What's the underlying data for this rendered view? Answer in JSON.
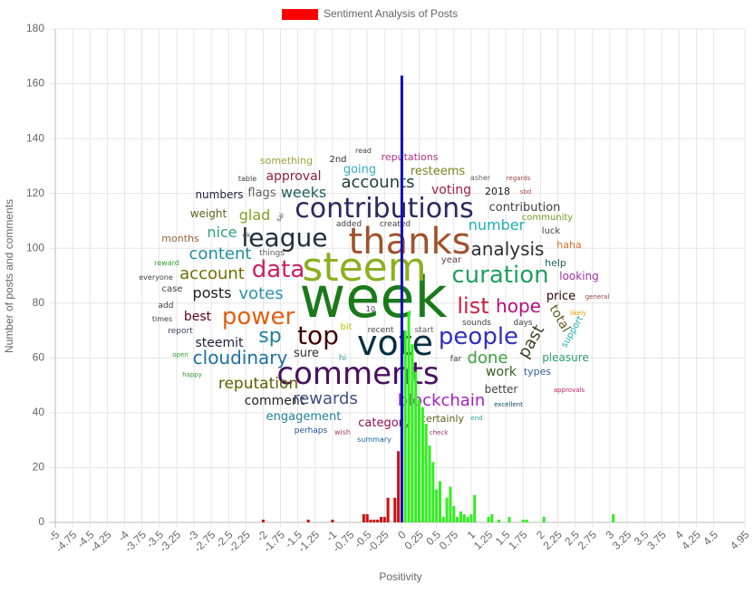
{
  "chart_data": {
    "type": "bar",
    "legend": "Sentiment Analysis of Posts",
    "color": "#ff0000",
    "xlabel": "Positivity",
    "ylabel": "Number of posts and comments",
    "x": [
      -2,
      -1.35,
      -1,
      -0.55,
      -0.5,
      -0.45,
      -0.4,
      -0.35,
      -0.3,
      -0.25,
      -0.2,
      -0.1,
      -0.05,
      0,
      0.05,
      0.1,
      0.15,
      0.2,
      0.25,
      0.3,
      0.35,
      0.4,
      0.45,
      0.5,
      0.55,
      0.6,
      0.65,
      0.7,
      0.75,
      0.8,
      0.85,
      0.9,
      0.95,
      1,
      1.05,
      1.25,
      1.3,
      1.4,
      1.55,
      1.75,
      1.8,
      2.05,
      3.05
    ],
    "values": [
      1,
      1,
      1,
      3,
      3,
      1,
      1,
      1,
      2,
      2,
      9,
      9,
      26,
      163,
      70,
      77,
      65,
      55,
      45,
      42,
      36,
      28,
      22,
      12,
      15,
      2,
      9,
      13,
      6,
      2,
      4,
      3,
      2,
      3,
      10,
      2,
      3,
      1,
      2,
      1,
      1,
      2,
      3
    ],
    "bar_colors": {
      "negative": "#cc1111",
      "zero": "#1111bb",
      "positive": "#33ee22"
    },
    "xlim": [
      -5,
      4.95
    ],
    "xticks": [
      -5,
      -4.75,
      -4.5,
      -4.25,
      -4,
      -3.75,
      -3.5,
      -3.25,
      -3,
      -2.75,
      -2.5,
      -2.25,
      -2,
      -1.75,
      -1.5,
      -1.25,
      -1,
      -0.75,
      -0.5,
      -0.25,
      0,
      0.25,
      0.5,
      0.75,
      1,
      1.25,
      1.5,
      1.75,
      2,
      2.25,
      2.5,
      2.75,
      3,
      3.25,
      3.5,
      3.75,
      4,
      4.25,
      4.5,
      4.95
    ],
    "ylim": [
      0,
      180
    ],
    "yticks": [
      0,
      20,
      40,
      60,
      80,
      100,
      120,
      140,
      160,
      180
    ],
    "grid": true
  },
  "word_cloud": [
    {
      "text": "week",
      "color": "#1a7a1a"
    },
    {
      "text": "steem",
      "color": "#8ab020"
    },
    {
      "text": "thanks",
      "color": "#a0522d"
    },
    {
      "text": "contributions",
      "color": "#2a2a60"
    },
    {
      "text": "league",
      "color": "#203040"
    },
    {
      "text": "vote",
      "color": "#0a3040"
    },
    {
      "text": "comments",
      "color": "#4a1060"
    },
    {
      "text": "top",
      "color": "#400000"
    },
    {
      "text": "power",
      "color": "#e06010"
    },
    {
      "text": "data",
      "color": "#cc2060"
    },
    {
      "text": "curation",
      "color": "#20a060"
    },
    {
      "text": "analysis",
      "color": "#303030"
    },
    {
      "text": "people",
      "color": "#3030c0"
    },
    {
      "text": "list",
      "color": "#d02040"
    },
    {
      "text": "hope",
      "color": "#b01080"
    },
    {
      "text": "sp",
      "color": "#2080a0"
    },
    {
      "text": "cloudinary",
      "color": "#2070a0"
    },
    {
      "text": "votes",
      "color": "#3090b0"
    },
    {
      "text": "posts",
      "color": "#202020"
    },
    {
      "text": "account",
      "color": "#707000"
    },
    {
      "text": "content",
      "color": "#2090a0"
    },
    {
      "text": "nice",
      "color": "#30a080"
    },
    {
      "text": "glad",
      "color": "#80a020"
    },
    {
      "text": "weight",
      "color": "#606020"
    },
    {
      "text": "months",
      "color": "#a06040"
    },
    {
      "text": "numbers",
      "color": "#202040"
    },
    {
      "text": "flags",
      "color": "#606060"
    },
    {
      "text": "weeks",
      "color": "#206060"
    },
    {
      "text": "approval",
      "color": "#902040"
    },
    {
      "text": "something",
      "color": "#a0a040"
    },
    {
      "text": "2nd",
      "color": "#303030"
    },
    {
      "text": "read",
      "color": "#404040"
    },
    {
      "text": "going",
      "color": "#30b0c0"
    },
    {
      "text": "accounts",
      "color": "#204040"
    },
    {
      "text": "reputations",
      "color": "#b03080"
    },
    {
      "text": "resteems",
      "color": "#808020"
    },
    {
      "text": "voting",
      "color": "#a02040"
    },
    {
      "text": "2018",
      "color": "#202020"
    },
    {
      "text": "asher",
      "color": "#606060"
    },
    {
      "text": "regards",
      "color": "#a04040"
    },
    {
      "text": "sbd",
      "color": "#c04040"
    },
    {
      "text": "contribution",
      "color": "#404040"
    },
    {
      "text": "number",
      "color": "#20b0b0"
    },
    {
      "text": "community",
      "color": "#70a020"
    },
    {
      "text": "luck",
      "color": "#404040"
    },
    {
      "text": "haha",
      "color": "#e07030"
    },
    {
      "text": "help",
      "color": "#206060"
    },
    {
      "text": "looking",
      "color": "#a030a0"
    },
    {
      "text": "price",
      "color": "#300000"
    },
    {
      "text": "general",
      "color": "#a04040"
    },
    {
      "text": "likely",
      "color": "#e0a000"
    },
    {
      "text": "total",
      "color": "#606020"
    },
    {
      "text": "support",
      "color": "#20b0b0"
    },
    {
      "text": "past",
      "color": "#404020"
    },
    {
      "text": "pleasure",
      "color": "#30a070"
    },
    {
      "text": "types",
      "color": "#3060a0"
    },
    {
      "text": "approvals",
      "color": "#c02060"
    },
    {
      "text": "days",
      "color": "#404040"
    },
    {
      "text": "sounds",
      "color": "#404040"
    },
    {
      "text": "done",
      "color": "#40a040"
    },
    {
      "text": "work",
      "color": "#306020"
    },
    {
      "text": "better",
      "color": "#404040"
    },
    {
      "text": "excellent",
      "color": "#104060"
    },
    {
      "text": "far",
      "color": "#404040"
    },
    {
      "text": "certainly",
      "color": "#606020"
    },
    {
      "text": "end",
      "color": "#30a0a0"
    },
    {
      "text": "check",
      "color": "#a03060"
    },
    {
      "text": "blockchain",
      "color": "#a020c0"
    },
    {
      "text": "start",
      "color": "#606060"
    },
    {
      "text": "recent",
      "color": "#404040"
    },
    {
      "text": "bit",
      "color": "#c0c000"
    },
    {
      "text": "10",
      "color": "#404040"
    },
    {
      "text": "year",
      "color": "#604040"
    },
    {
      "text": "added",
      "color": "#404040"
    },
    {
      "text": "created",
      "color": "#404040"
    },
    {
      "text": "things",
      "color": "#606060"
    },
    {
      "text": "ok",
      "color": "#404040"
    },
    {
      "text": "sai",
      "color": "#404040"
    },
    {
      "text": "table",
      "color": "#404040"
    },
    {
      "text": "everyone",
      "color": "#404040"
    },
    {
      "text": "case",
      "color": "#404040"
    },
    {
      "text": "add",
      "color": "#404040"
    },
    {
      "text": "times",
      "color": "#404040"
    },
    {
      "text": "reward",
      "color": "#30a030"
    },
    {
      "text": "best",
      "color": "#600020"
    },
    {
      "text": "report",
      "color": "#404060"
    },
    {
      "text": "steemit",
      "color": "#202040"
    },
    {
      "text": "open",
      "color": "#30a030"
    },
    {
      "text": "happy",
      "color": "#30a030"
    },
    {
      "text": "reputation",
      "color": "#606000"
    },
    {
      "text": "sure",
      "color": "#303030"
    },
    {
      "text": "hi",
      "color": "#30a0a0"
    },
    {
      "text": "comment",
      "color": "#202020"
    },
    {
      "text": "rewards",
      "color": "#405080"
    },
    {
      "text": "engagement",
      "color": "#2080a0"
    },
    {
      "text": "category",
      "color": "#901050"
    },
    {
      "text": "perhaps",
      "color": "#2050a0"
    },
    {
      "text": "wish",
      "color": "#a04060"
    },
    {
      "text": "summary",
      "color": "#2060a0"
    }
  ]
}
